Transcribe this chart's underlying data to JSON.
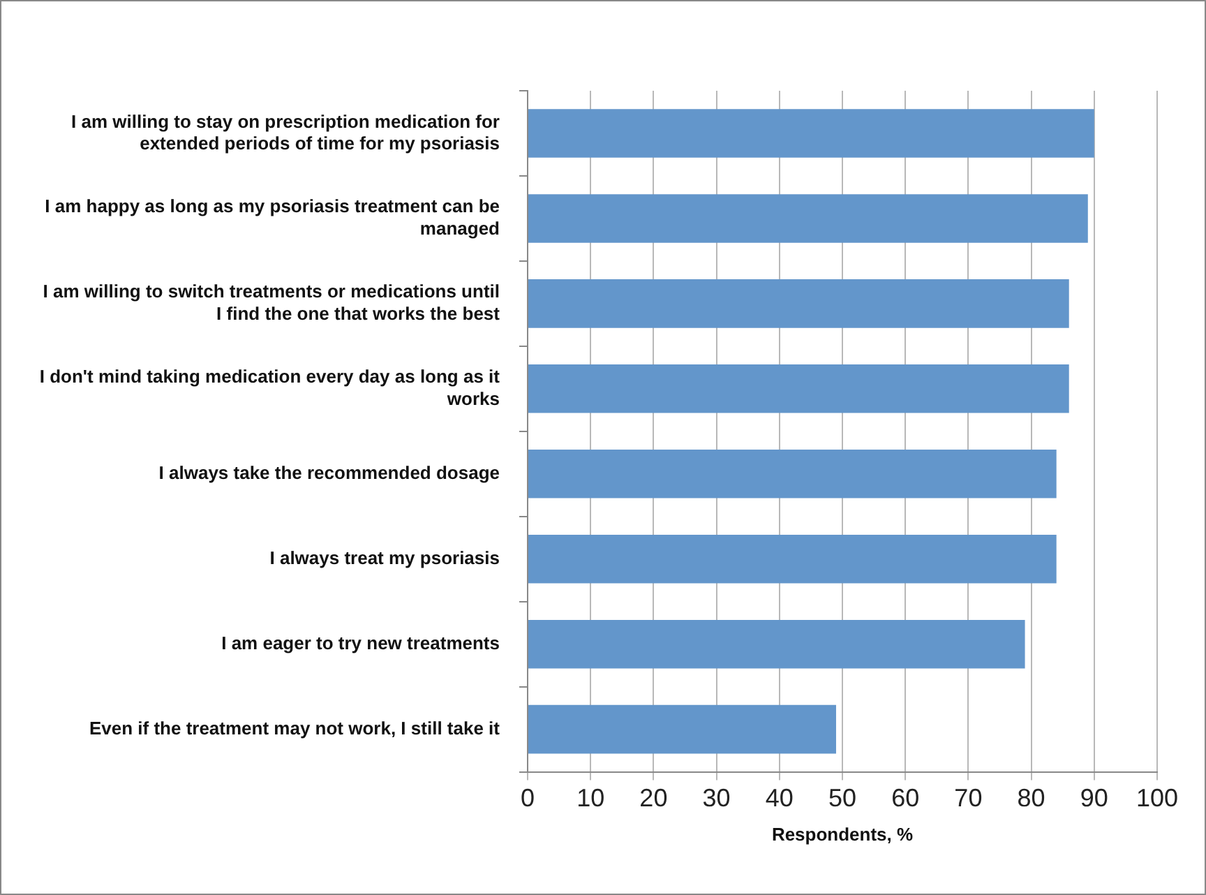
{
  "chart_data": {
    "type": "bar",
    "orientation": "horizontal",
    "xlabel": "Respondents, %",
    "categories": [
      "I am willing to stay on prescription medication for extended periods of time for my psoriasis",
      "I am happy as long as my psoriasis treatment can be managed",
      "I am willing to switch treatments or medications until I find the one that works the best",
      "I don't mind taking medication every day as long as it works",
      "I always take the recommended dosage",
      "I always treat my psoriasis",
      "I am eager to try new treatments",
      "Even if the treatment may not work, I still take it"
    ],
    "values": [
      90,
      89,
      86,
      86,
      84,
      84,
      79,
      49
    ],
    "color": "#6396cb",
    "xlim": [
      0,
      100
    ],
    "xticks": [
      0,
      10,
      20,
      30,
      40,
      50,
      60,
      70,
      80,
      90,
      100
    ],
    "grid": "x",
    "legend": false
  }
}
